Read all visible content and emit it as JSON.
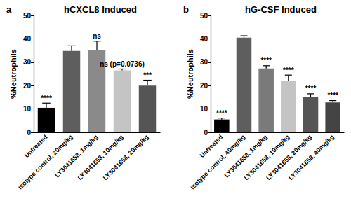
{
  "chart_data": [
    {
      "type": "bar",
      "panel": "a",
      "title": "hCXCL8 Induced",
      "y_label": "%Neutrophils",
      "categories": [
        "Untreated",
        "isotype control, 20mg/kg",
        "LY3041658, 1mg/kg",
        "LY3041658, 10mg/kg",
        "LY3041658, 20mg/kg"
      ],
      "values": [
        10.5,
        34.8,
        35.2,
        26.5,
        20.0
      ],
      "errors": [
        2.0,
        2.2,
        3.8,
        0.6,
        2.3
      ],
      "annotations": [
        "****",
        null,
        "ns",
        "ns (p=0.0736)",
        "***"
      ],
      "colors": [
        "#000000",
        "#5e5e5e",
        "#8a8a8a",
        "#c4c4c4",
        "#555555"
      ],
      "ylim": [
        0,
        50
      ],
      "yticks": [
        0,
        10,
        20,
        30,
        40,
        50
      ],
      "grid": false
    },
    {
      "type": "bar",
      "panel": "b",
      "title": "hG-CSF Induced",
      "y_label": "%Neutrophils",
      "categories": [
        "Untreated",
        "isotype control, 40mg/kg",
        "LY3041658, 1mg/kg",
        "LY3041658, 10mg/kg",
        "LY3041658, 20mg/kg",
        "LY3041658, 40mg/kg"
      ],
      "values": [
        5.5,
        40.5,
        27.3,
        22.0,
        15.0,
        12.8
      ],
      "errors": [
        0.6,
        0.8,
        1.2,
        2.5,
        1.5,
        0.8
      ],
      "annotations": [
        "****",
        null,
        "****",
        "****",
        "****",
        "****"
      ],
      "colors": [
        "#000000",
        "#5e5e5e",
        "#7a7a7a",
        "#c4c4c4",
        "#555555",
        "#444444"
      ],
      "ylim": [
        0,
        50
      ],
      "yticks": [
        0,
        10,
        20,
        30,
        40,
        50
      ],
      "grid": false
    }
  ]
}
